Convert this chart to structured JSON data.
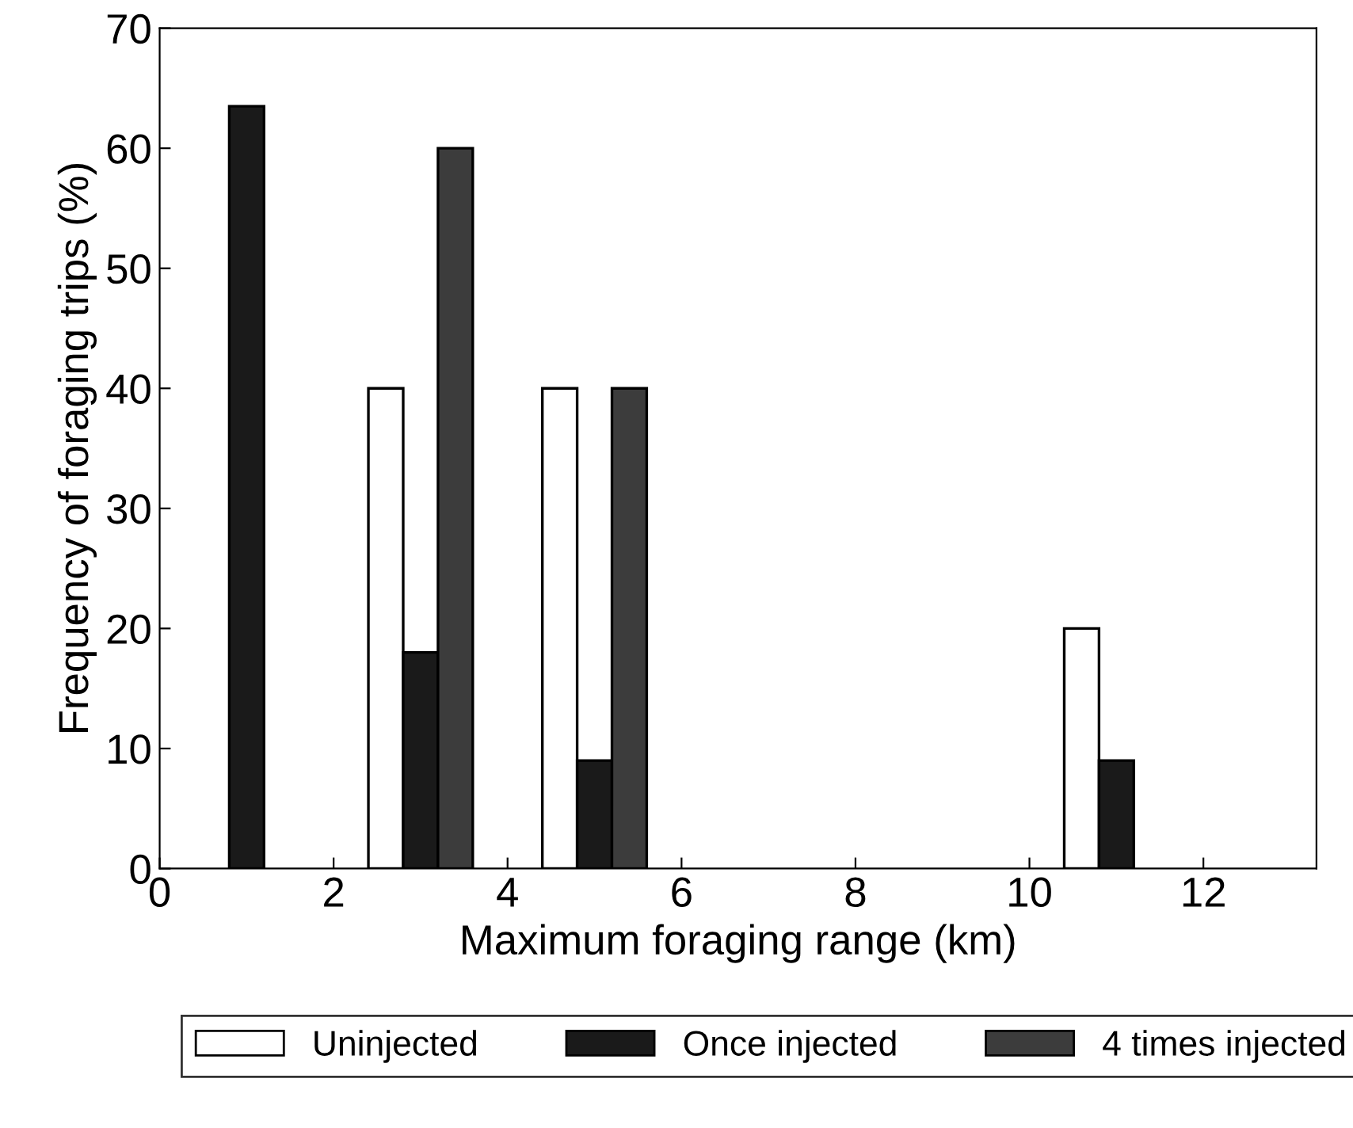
{
  "chart_data": {
    "type": "bar",
    "xlabel": "Maximum foraging range (km)",
    "ylabel": "Frequency of foraging trips (%)",
    "xlim": [
      0,
      13.3
    ],
    "xticks": [
      0,
      2,
      4,
      6,
      8,
      10,
      12
    ],
    "ylim": [
      0,
      70
    ],
    "yticks": [
      0,
      10,
      20,
      30,
      40,
      50,
      60,
      70
    ],
    "grid": false,
    "legend": "bottom",
    "series": [
      {
        "name": "Uninjected",
        "color": "#ffffff",
        "x": [
          2.6,
          4.6,
          10.6
        ],
        "values": [
          40,
          40,
          20
        ]
      },
      {
        "name": "Once injected",
        "color": "#1a1a1a",
        "x": [
          1,
          3,
          5,
          11
        ],
        "values": [
          63.5,
          18,
          9,
          9
        ]
      },
      {
        "name": "4 times injected",
        "color": "#3c3c3c",
        "x": [
          3.4,
          5.4
        ],
        "values": [
          60,
          40
        ]
      }
    ]
  }
}
